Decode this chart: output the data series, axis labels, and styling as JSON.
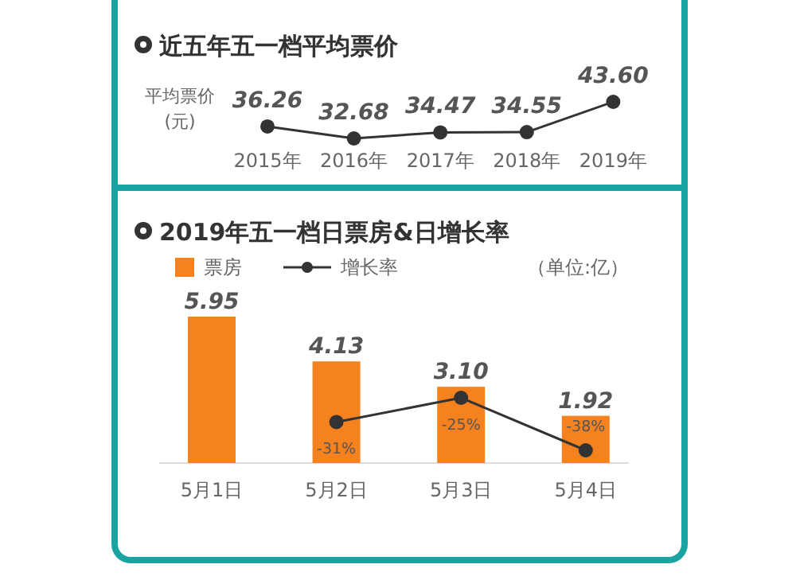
{
  "chart_data": [
    {
      "type": "line",
      "title": "近五年五一档平均票价",
      "ylabel": "平均票价 (元)",
      "categories": [
        "2015年",
        "2016年",
        "2017年",
        "2018年",
        "2019年"
      ],
      "marker": "circle",
      "series": [
        {
          "color": "#333333",
          "values": [
            36.26,
            32.68,
            34.47,
            34.55,
            43.6
          ],
          "value_labels": [
            "36.26",
            "32.68",
            "34.47",
            "34.55",
            "43.60"
          ]
        }
      ]
    },
    {
      "type": "bar",
      "title": "2019年五一档日票房&日增长率",
      "annotations": [
        "（单位:亿）"
      ],
      "categories": [
        "5月1日",
        "5月2日",
        "5月3日",
        "5月4日"
      ],
      "legend": "top left",
      "series": [
        {
          "name": "票房",
          "type": "bar",
          "color": "#f5821f",
          "values": [
            5.95,
            4.13,
            3.1,
            1.92
          ],
          "value_labels": [
            "5.95",
            "4.13",
            "3.10",
            "1.92"
          ]
        },
        {
          "name": "增长率",
          "type": "line",
          "axis": "y2",
          "marker": "circle",
          "color": "#333333",
          "values": [
            null,
            -31,
            -25,
            -38
          ],
          "value_labels": [
            null,
            "-31%",
            "-25%",
            "-38%"
          ]
        }
      ]
    }
  ]
}
